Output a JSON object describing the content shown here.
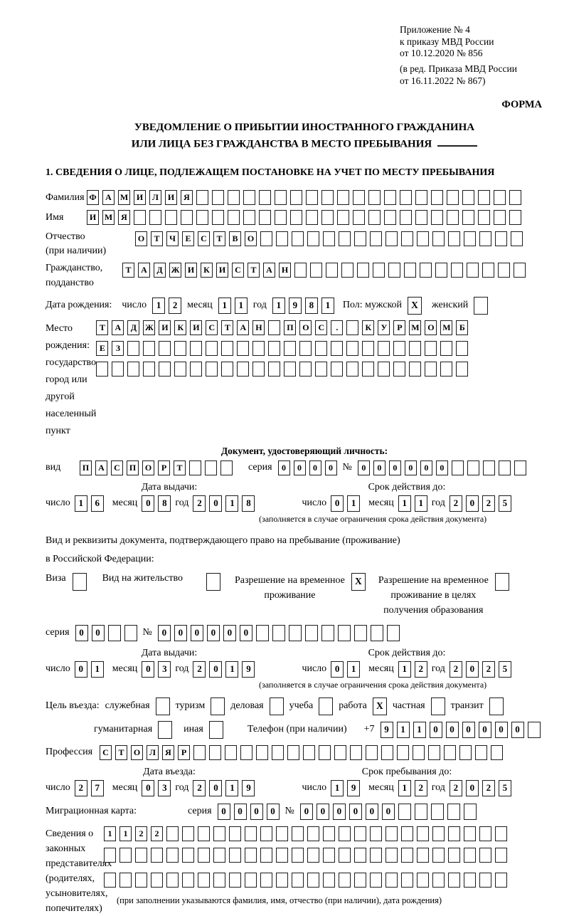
{
  "header": {
    "appendix_lines": [
      "Приложение № 4",
      "к приказу МВД России",
      "от 10.12.2020 № 856"
    ],
    "revision_lines": [
      "(в ред. Приказа МВД России",
      "от 16.11.2022 № 867)"
    ],
    "form_label": "ФОРМА"
  },
  "title": {
    "line1": "УВЕДОМЛЕНИЕ О ПРИБЫТИИ ИНОСТРАННОГО ГРАЖДАНИНА",
    "line2": "ИЛИ ЛИЦА БЕЗ ГРАЖДАНСТВА В МЕСТО ПРЕБЫВАНИЯ"
  },
  "labels": {
    "chislo": "число",
    "mesyac": "месяц",
    "god": "год",
    "seriya": "серия",
    "nomer": "№",
    "data_vydachi": "Дата выдачи:",
    "srok_deystviya": "Срок действия до:",
    "restriction_note": "(заполняется в случае ограничения срока действия документа)"
  },
  "section1": {
    "heading": "1. СВЕДЕНИЯ О ЛИЦЕ, ПОДЛЕЖАЩЕМ ПОСТАНОВКЕ НА УЧЕТ ПО МЕСТУ ПРЕБЫВАНИЯ",
    "surname": {
      "label": "Фамилия",
      "filled": "ФАМИЛИЯ",
      "total": 28
    },
    "given_name": {
      "label": "Имя",
      "filled": "ИМЯ",
      "total": 28
    },
    "patronymic": {
      "label_lines": [
        "Отчество",
        "(при наличии)"
      ],
      "filled": "ОТЧЕСТВО",
      "total": 25
    },
    "citizenship": {
      "label_lines": [
        "Гражданство,",
        "подданство"
      ],
      "filled": "ТАДЖИКИСТАН",
      "total": 26
    },
    "birth_date": {
      "label": "Дата рождения:",
      "day": {
        "filled": "12",
        "total": 2
      },
      "month": {
        "filled": "11",
        "total": 2
      },
      "year": {
        "filled": "1981",
        "total": 4
      },
      "sex_label": "Пол: мужской",
      "male_mark": "X",
      "female_label": "женский",
      "female_mark": ""
    },
    "birth_place": {
      "label_lines": [
        "Место рождения:",
        "государство",
        "город или другой",
        "населенный пункт"
      ],
      "row1": {
        "cells": [
          "Т",
          "А",
          "Д",
          "Ж",
          "И",
          "К",
          "И",
          "С",
          "Т",
          "А",
          "Н",
          "",
          "П",
          "О",
          "С",
          ".",
          "",
          "К",
          "У",
          "Р",
          "М",
          "О",
          "М",
          "Б"
        ]
      },
      "row2": {
        "filled": "ЕЗ",
        "total": 24
      },
      "row3": {
        "filled": "",
        "total": 24
      }
    },
    "identity_doc": {
      "heading": "Документ, удостоверяющий личность:",
      "type_label": "вид",
      "type": {
        "filled": "ПАСПОРТ",
        "total": 10
      },
      "series": {
        "filled": "0000",
        "total": 4
      },
      "number": {
        "filled": "000000",
        "total": 11
      },
      "issue": {
        "day": {
          "filled": "16",
          "total": 2
        },
        "month": {
          "filled": "08",
          "total": 2
        },
        "year": {
          "filled": "2018",
          "total": 4
        }
      },
      "expiry": {
        "day": {
          "filled": "01",
          "total": 2
        },
        "month": {
          "filled": "11",
          "total": 2
        },
        "year": {
          "filled": "2025",
          "total": 4
        }
      }
    },
    "residence_doc": {
      "intro_line1": "Вид и реквизиты документа, подтверждающего право на пребывание (проживание)",
      "intro_line2": "в Российской Федерации:",
      "visa_label": "Виза",
      "visa_mark": "",
      "vnzh_label": "Вид на жительство",
      "vnzh_mark": "",
      "rvp_label_lines": [
        "Разрешение на временное",
        "проживание"
      ],
      "rvp_mark": "X",
      "rvp_edu_label_lines": [
        "Разрешение на временное",
        "проживание в целях",
        "получения образования"
      ],
      "rvp_edu_mark": "",
      "series": {
        "filled": "00",
        "total": 4
      },
      "number": {
        "filled": "000000",
        "total": 15
      },
      "issue": {
        "day": {
          "filled": "01",
          "total": 2
        },
        "month": {
          "filled": "03",
          "total": 2
        },
        "year": {
          "filled": "2019",
          "total": 4
        }
      },
      "expiry": {
        "day": {
          "filled": "01",
          "total": 2
        },
        "month": {
          "filled": "12",
          "total": 2
        },
        "year": {
          "filled": "2025",
          "total": 4
        }
      }
    },
    "purpose": {
      "label": "Цель въезда:",
      "options": [
        {
          "label": "служебная",
          "mark": ""
        },
        {
          "label": "туризм",
          "mark": ""
        },
        {
          "label": "деловая",
          "mark": ""
        },
        {
          "label": "учеба",
          "mark": ""
        },
        {
          "label": "работа",
          "mark": "X"
        },
        {
          "label": "частная",
          "mark": ""
        },
        {
          "label": "транзит",
          "mark": ""
        }
      ],
      "options_line2": [
        {
          "label": "гуманитарная",
          "mark": ""
        },
        {
          "label": "иная",
          "mark": ""
        }
      ],
      "phone_label": "Телефон (при наличии)",
      "phone_prefix": "+7",
      "phone": {
        "cells": [
          "9",
          "1",
          "1",
          "0",
          "0",
          "0",
          "0",
          "0",
          "0",
          ""
        ]
      }
    },
    "profession": {
      "label": "Профессия",
      "filled": "СТОЛЯР",
      "total": 26
    },
    "entry": {
      "entry_label": "Дата въезда:",
      "stay_label": "Срок пребывания до:",
      "entry_date": {
        "day": {
          "filled": "27",
          "total": 2
        },
        "month": {
          "filled": "03",
          "total": 2
        },
        "year": {
          "filled": "2019",
          "total": 4
        }
      },
      "stay_until": {
        "day": {
          "filled": "19",
          "total": 2
        },
        "month": {
          "filled": "12",
          "total": 2
        },
        "year": {
          "filled": "2025",
          "total": 4
        }
      }
    },
    "migration_card": {
      "label": "Миграционная карта:",
      "series": {
        "filled": "0000",
        "total": 4
      },
      "number": {
        "filled": "000000",
        "total": 11
      }
    },
    "legal_reps": {
      "label_lines": [
        "Сведения о",
        "законных",
        "представителях",
        "(родителях,",
        "усыновителях,",
        "попечителях)"
      ],
      "row1": {
        "filled": "1122",
        "total": 26
      },
      "row2": {
        "filled": "",
        "total": 26
      },
      "row3": {
        "filled": "",
        "total": 26
      },
      "note": "(при заполнении указываются фамилия, имя, отчество (при наличии), дата рождения)"
    }
  }
}
